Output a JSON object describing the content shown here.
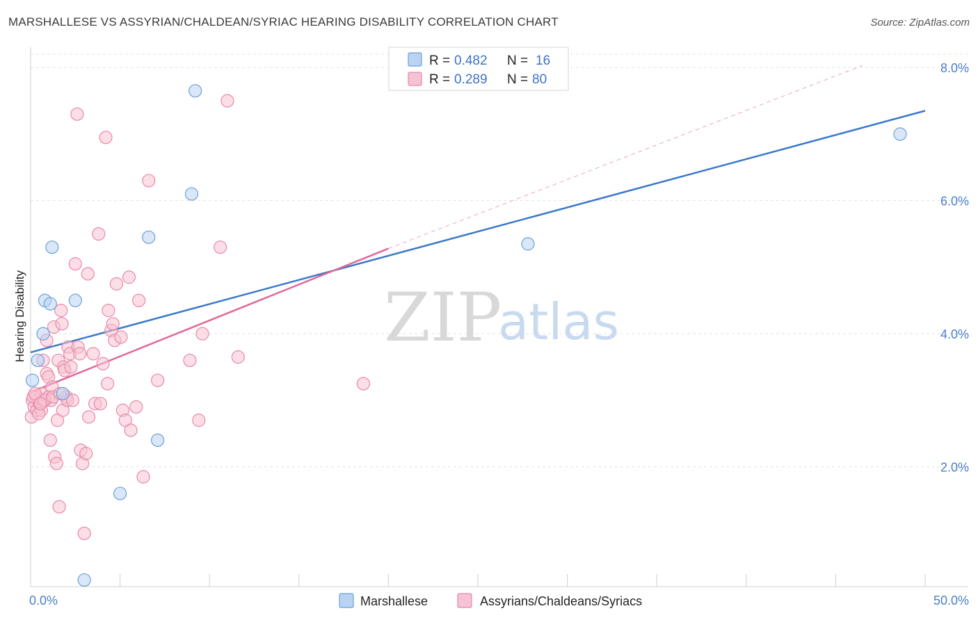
{
  "title": "MARSHALLESE VS ASSYRIAN/CHALDEAN/SYRIAC HEARING DISABILITY CORRELATION CHART",
  "source": "Source: ZipAtlas.com",
  "watermark": {
    "zip": "ZIP",
    "atlas": "atlas"
  },
  "colors": {
    "blue_fill": "#b9d3f2",
    "blue_stroke": "#6d9fd9",
    "blue_line": "#3a78c9",
    "pink_fill": "#f7c2d2",
    "pink_stroke": "#e68aa7",
    "pink_line": "#e0679a",
    "grid": "#e2e2e2",
    "axis_label": "#4a7fc8"
  },
  "legend": {
    "rows": [
      {
        "r_label": "R =",
        "r_value": "0.482",
        "n_label": "N =",
        "n_value": "16"
      },
      {
        "r_label": "R =",
        "r_value": "0.289",
        "n_label": "N =",
        "n_value": "80"
      }
    ]
  },
  "bottom_legend": [
    "Marshallese",
    "Assyrians/Chaldeans/Syriacs"
  ],
  "chart_data": {
    "type": "scatter",
    "xlabel": "",
    "ylabel": "Hearing Disability",
    "xlim": [
      0,
      50
    ],
    "ylim": [
      0.2,
      8.2
    ],
    "x_ticks": [
      {
        "value": 0,
        "label": "0.0%"
      },
      {
        "value": 50,
        "label": "50.0%"
      }
    ],
    "y_ticks": [
      {
        "value": 2,
        "label": "2.0%"
      },
      {
        "value": 4,
        "label": "4.0%"
      },
      {
        "value": 6,
        "label": "6.0%"
      },
      {
        "value": 8,
        "label": "8.0%"
      }
    ],
    "legend_position": "top-center",
    "grid": true,
    "series": [
      {
        "name": "Marshallese",
        "points": [
          [
            0.1,
            3.3
          ],
          [
            0.4,
            3.6
          ],
          [
            0.7,
            4.0
          ],
          [
            0.8,
            4.5
          ],
          [
            1.1,
            4.45
          ],
          [
            1.2,
            5.3
          ],
          [
            1.8,
            3.1
          ],
          [
            2.5,
            4.5
          ],
          [
            3.0,
            0.3
          ],
          [
            5.0,
            1.6
          ],
          [
            6.6,
            5.45
          ],
          [
            7.1,
            2.4
          ],
          [
            9.0,
            6.1
          ],
          [
            9.2,
            7.65
          ],
          [
            27.8,
            5.35
          ],
          [
            48.6,
            7.0
          ]
        ],
        "trend": {
          "x": [
            0,
            50
          ],
          "y": [
            3.72,
            7.35
          ]
        }
      },
      {
        "name": "Assyrians/Chaldeans/Syriacs",
        "points": [
          [
            0.05,
            2.75
          ],
          [
            0.1,
            3.0
          ],
          [
            0.2,
            2.9
          ],
          [
            0.3,
            3.05
          ],
          [
            0.35,
            2.85
          ],
          [
            0.5,
            2.95
          ],
          [
            0.6,
            3.1
          ],
          [
            0.6,
            2.85
          ],
          [
            0.7,
            3.6
          ],
          [
            0.8,
            3.0
          ],
          [
            0.9,
            3.9
          ],
          [
            0.9,
            3.4
          ],
          [
            1.0,
            3.35
          ],
          [
            1.0,
            3.05
          ],
          [
            1.1,
            2.4
          ],
          [
            1.15,
            3.0
          ],
          [
            1.2,
            3.2
          ],
          [
            1.3,
            4.1
          ],
          [
            1.35,
            2.15
          ],
          [
            1.45,
            2.05
          ],
          [
            1.5,
            2.7
          ],
          [
            1.55,
            3.6
          ],
          [
            1.6,
            1.4
          ],
          [
            1.7,
            4.35
          ],
          [
            1.75,
            4.15
          ],
          [
            1.8,
            2.85
          ],
          [
            1.85,
            3.5
          ],
          [
            1.9,
            3.45
          ],
          [
            2.0,
            3.05
          ],
          [
            2.05,
            3.0
          ],
          [
            2.1,
            3.8
          ],
          [
            2.2,
            3.7
          ],
          [
            2.25,
            3.5
          ],
          [
            2.5,
            5.05
          ],
          [
            2.6,
            7.3
          ],
          [
            2.65,
            3.8
          ],
          [
            2.75,
            3.7
          ],
          [
            2.8,
            2.25
          ],
          [
            2.9,
            2.05
          ],
          [
            3.0,
            1.0
          ],
          [
            3.1,
            2.2
          ],
          [
            3.2,
            4.9
          ],
          [
            3.25,
            2.75
          ],
          [
            3.5,
            3.7
          ],
          [
            3.6,
            2.95
          ],
          [
            3.8,
            5.5
          ],
          [
            3.9,
            2.95
          ],
          [
            4.05,
            3.55
          ],
          [
            4.2,
            6.95
          ],
          [
            4.3,
            3.25
          ],
          [
            4.35,
            4.35
          ],
          [
            4.5,
            4.05
          ],
          [
            4.6,
            4.15
          ],
          [
            4.7,
            3.9
          ],
          [
            4.8,
            4.75
          ],
          [
            5.05,
            3.95
          ],
          [
            5.15,
            2.85
          ],
          [
            5.3,
            2.7
          ],
          [
            5.5,
            4.85
          ],
          [
            5.6,
            2.55
          ],
          [
            5.9,
            2.9
          ],
          [
            6.05,
            4.5
          ],
          [
            6.3,
            1.85
          ],
          [
            6.6,
            6.3
          ],
          [
            7.1,
            3.3
          ],
          [
            8.9,
            3.6
          ],
          [
            9.4,
            2.7
          ],
          [
            9.6,
            4.0
          ],
          [
            10.6,
            5.3
          ],
          [
            11.0,
            7.5
          ],
          [
            11.6,
            3.65
          ],
          [
            18.6,
            3.25
          ],
          [
            0.15,
            3.05
          ],
          [
            0.45,
            2.8
          ],
          [
            0.75,
            3.0
          ],
          [
            1.25,
            3.05
          ],
          [
            1.65,
            3.1
          ],
          [
            2.35,
            3.0
          ],
          [
            0.25,
            3.1
          ],
          [
            0.55,
            2.95
          ]
        ],
        "trend": {
          "x": [
            0,
            20
          ],
          "y": [
            3.12,
            5.28
          ]
        },
        "trend_extension": {
          "x": [
            20,
            46.5
          ],
          "y": [
            5.28,
            8.03
          ]
        }
      }
    ]
  }
}
